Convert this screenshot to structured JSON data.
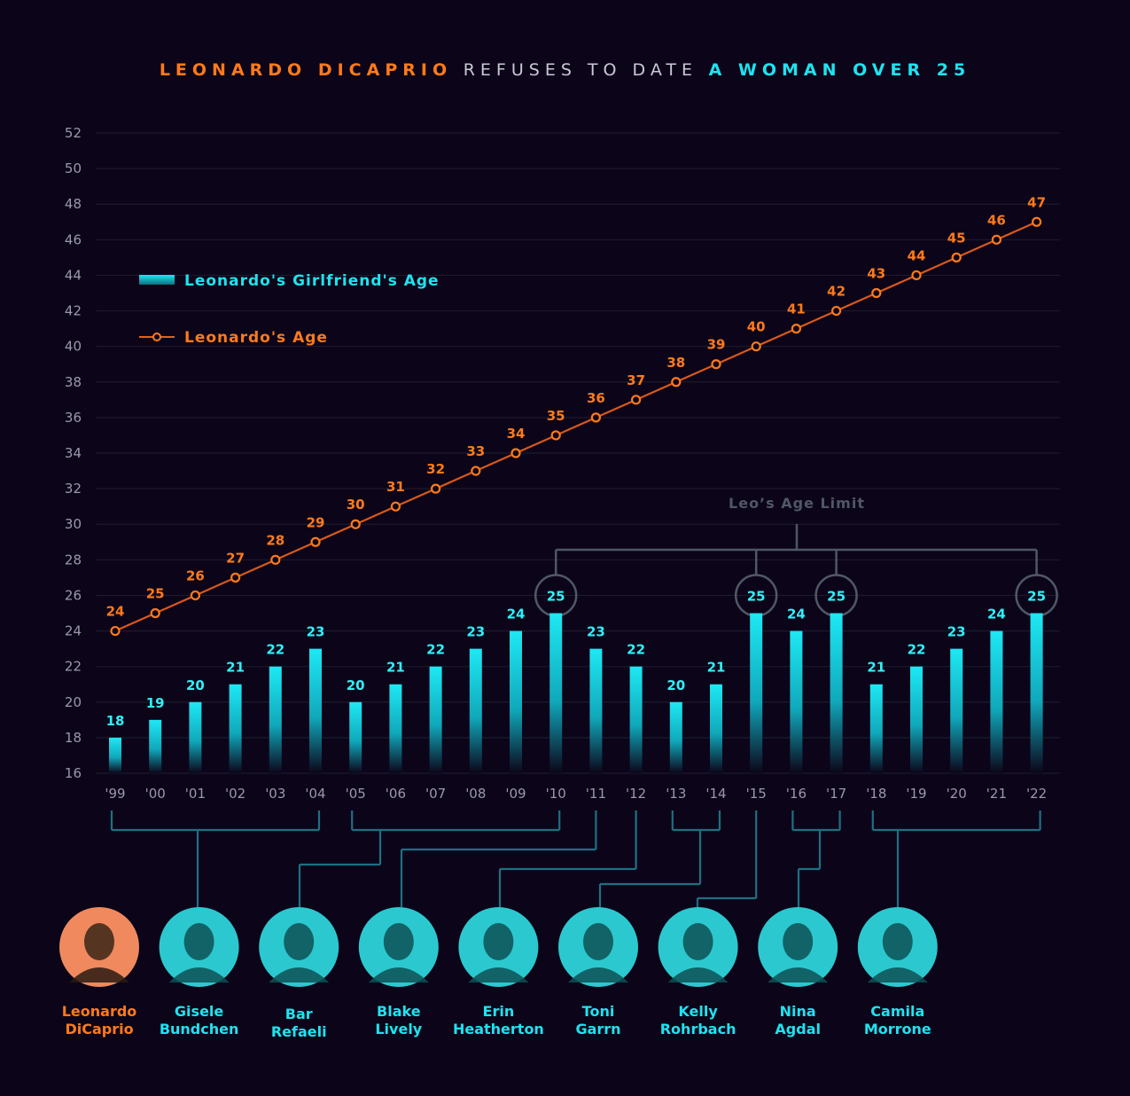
{
  "title": {
    "part1": "LEONARDO DICAPRIO",
    "part2": "REFUSES TO DATE",
    "part3": "A WOMAN OVER 25"
  },
  "colors": {
    "background": "#0c0519",
    "leo": "#ff7a1a",
    "girlfriend": "#1ee3f0",
    "connector": "#1f6f82",
    "limit": "#4f5766"
  },
  "legend": {
    "bar": "Leonardo's Girlfriend's Age",
    "line": "Leonardo's Age"
  },
  "age_limit_label": "Leo’s Age Limit",
  "people": [
    {
      "first": "Leonardo",
      "last": "DiCaprio",
      "role": "leo"
    },
    {
      "first": "Gisele",
      "last": "Bundchen",
      "role": "girlfriend"
    },
    {
      "first": "Bar",
      "last": "Refaeli",
      "role": "girlfriend"
    },
    {
      "first": "Blake",
      "last": "Lively",
      "role": "girlfriend"
    },
    {
      "first": "Erin",
      "last": "Heatherton",
      "role": "girlfriend"
    },
    {
      "first": "Toni",
      "last": "Garrn",
      "role": "girlfriend"
    },
    {
      "first": "Kelly",
      "last": "Rohrbach",
      "role": "girlfriend"
    },
    {
      "first": "Nina",
      "last": "Agdal",
      "role": "girlfriend"
    },
    {
      "first": "Camila",
      "last": "Morrone",
      "role": "girlfriend"
    }
  ],
  "chart_data": {
    "type": "bar",
    "categories": [
      "'99",
      "'00",
      "'01",
      "'02",
      "'03",
      "'04",
      "'05",
      "'06",
      "'07",
      "'08",
      "'09",
      "'10",
      "'11",
      "'12",
      "'13",
      "'14",
      "'15",
      "'16",
      "'17",
      "'18",
      "'19",
      "'20",
      "'21",
      "'22"
    ],
    "series": [
      {
        "name": "Leonardo's Girlfriend's Age",
        "type": "bar",
        "values": [
          18,
          19,
          20,
          21,
          22,
          23,
          20,
          21,
          22,
          23,
          24,
          25,
          23,
          22,
          20,
          21,
          25,
          24,
          25,
          21,
          22,
          23,
          24,
          25
        ]
      },
      {
        "name": "Leonardo's Age",
        "type": "line",
        "values": [
          24,
          25,
          26,
          27,
          28,
          29,
          30,
          31,
          32,
          33,
          34,
          35,
          36,
          37,
          38,
          39,
          40,
          41,
          42,
          43,
          44,
          45,
          46,
          47
        ]
      }
    ],
    "y_ticks": [
      16,
      18,
      20,
      22,
      24,
      26,
      28,
      30,
      32,
      34,
      36,
      38,
      40,
      42,
      44,
      46,
      48,
      50,
      52
    ],
    "ylim": [
      16,
      52
    ],
    "grid": true,
    "age_limit_highlight": [
      "'10",
      "'15",
      "'17",
      "'22"
    ],
    "girlfriend_groups": [
      {
        "name": "Gisele Bundchen",
        "from": "'99",
        "to": "'04"
      },
      {
        "name": "Bar Refaeli",
        "from": "'05",
        "to": "'10"
      },
      {
        "name": "Blake Lively",
        "from": "'11",
        "to": "'11"
      },
      {
        "name": "Erin Heatherton",
        "from": "'12",
        "to": "'12"
      },
      {
        "name": "Toni Garrn",
        "from": "'13",
        "to": "'14"
      },
      {
        "name": "Kelly Rohrbach",
        "from": "'15",
        "to": "'15"
      },
      {
        "name": "Nina Agdal",
        "from": "'16",
        "to": "'17"
      },
      {
        "name": "Camila Morrone",
        "from": "'18",
        "to": "'22"
      }
    ]
  }
}
